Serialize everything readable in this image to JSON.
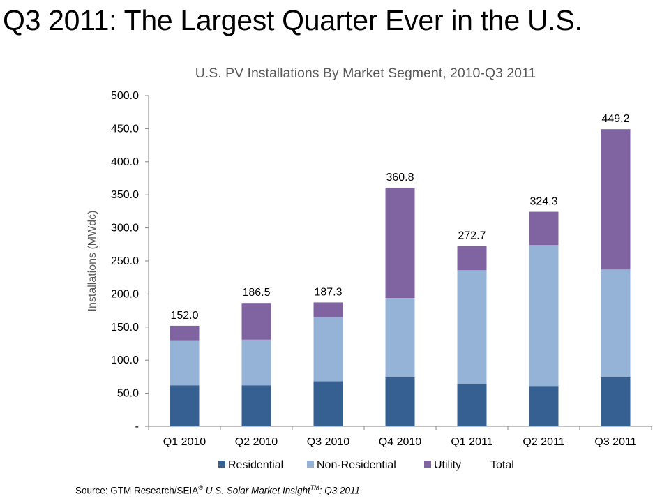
{
  "slide": {
    "title": "Q3 2011: The Largest Quarter Ever in the U.S."
  },
  "source": {
    "prefix": "Source: GTM Research/SEIA",
    "reg_mark": "®",
    "publication": " U.S. Solar Market Insight",
    "tm_mark": "TM",
    "suffix": ": Q3 2011"
  },
  "chart_data": {
    "type": "bar",
    "stacked": true,
    "title": "U.S. PV Installations By Market Segment, 2010-Q3 2011",
    "ylabel": "Installations (MWdc)",
    "xlabel": "",
    "ylim": [
      0,
      500
    ],
    "yticks": [
      0,
      50,
      100,
      150,
      200,
      250,
      300,
      350,
      400,
      450,
      500
    ],
    "ytick_labels": [
      "-",
      "50.0",
      "100.0",
      "150.0",
      "200.0",
      "250.0",
      "300.0",
      "350.0",
      "400.0",
      "450.0",
      "500.0"
    ],
    "categories": [
      "Q1 2010",
      "Q2 2010",
      "Q3 2010",
      "Q4 2010",
      "Q1 2011",
      "Q2 2011",
      "Q3 2011"
    ],
    "series": [
      {
        "name": "Residential",
        "color": "#366092",
        "values": [
          62,
          62,
          68,
          74,
          64,
          61,
          74
        ]
      },
      {
        "name": "Non-Residential",
        "color": "#95b3d7",
        "values": [
          68,
          69,
          97,
          120,
          172,
          213,
          163
        ]
      },
      {
        "name": "Utility",
        "color": "#8064a2",
        "values": [
          22,
          55.5,
          22.3,
          166.8,
          36.7,
          50.3,
          212.2
        ]
      }
    ],
    "totals": {
      "name": "Total",
      "values": [
        152.0,
        186.5,
        187.3,
        360.8,
        272.7,
        324.3,
        449.2
      ],
      "labels": [
        "152.0",
        "186.5",
        "187.3",
        "360.8",
        "272.7",
        "324.3",
        "449.2"
      ]
    },
    "grid": false,
    "legend": "bottom"
  }
}
